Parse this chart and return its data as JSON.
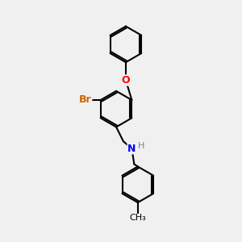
{
  "bg_color": "#f0f0f0",
  "bond_color": "#000000",
  "bond_width": 1.5,
  "atom_colors": {
    "Br": "#cc6600",
    "O": "#ff0000",
    "N": "#0000ff",
    "H": "#808080",
    "C": "#000000"
  },
  "font_size": 9,
  "fig_size": [
    3.0,
    3.0
  ],
  "dpi": 100
}
